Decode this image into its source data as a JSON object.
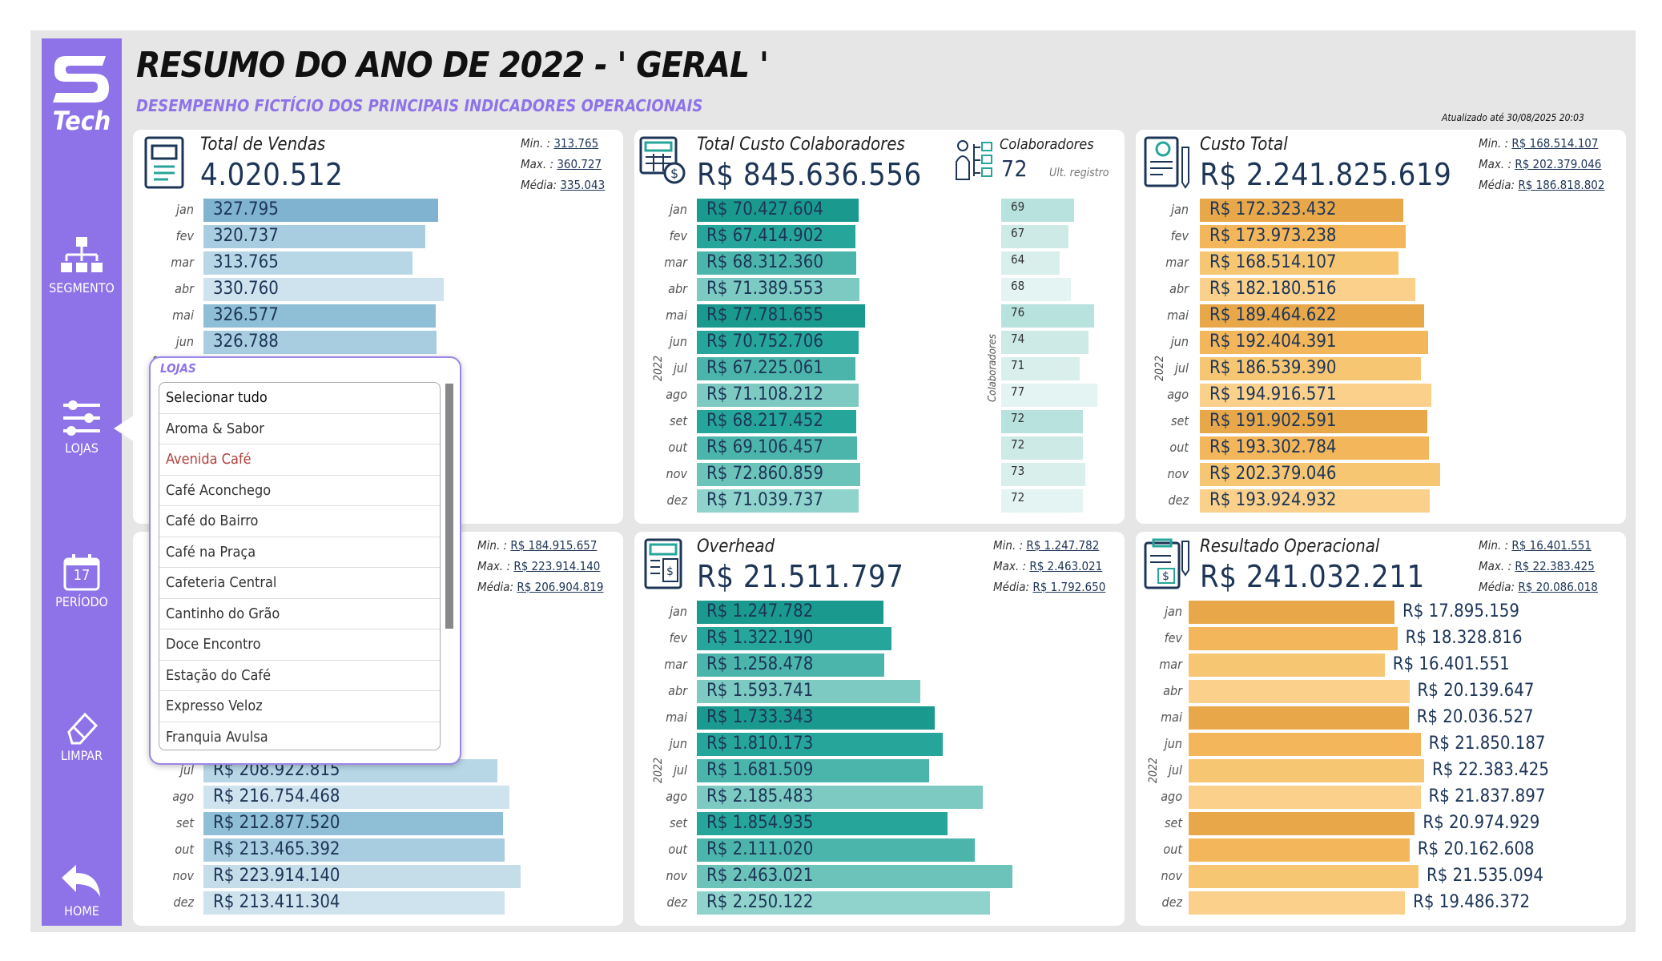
{
  "header": {
    "title": "RESUMO DO ANO DE 2022 - ' GERAL '",
    "subtitle": "DESEMPENHO FICTÍCIO DOS PRINCIPAIS INDICADORES OPERACIONAIS",
    "updated": "Atualizado até 30/08/2025 20:03"
  },
  "sidebar": {
    "logo": "Tech",
    "segmento": "SEGMENTO",
    "lojas": "LOJAS",
    "periodo": "PERÍODO",
    "periodo_day": "17",
    "limpar": "LIMPAR",
    "home": "HOME"
  },
  "months": [
    "jan",
    "fev",
    "mar",
    "abr",
    "mai",
    "jun",
    "jul",
    "ago",
    "set",
    "out",
    "nov",
    "dez"
  ],
  "year": "2022",
  "stat_labels": {
    "min": "Min.",
    "max": "Max.",
    "media": "Média:"
  },
  "cards": {
    "vendas": {
      "title": "Total de Vendas",
      "value": "4.020.512",
      "min": "313.765",
      "max": "360.727",
      "media": "335.043",
      "labels": [
        "327.795",
        "320.737",
        "313.765",
        "330.760",
        "326.577",
        "326.788"
      ],
      "values": [
        327795,
        320737,
        313765,
        330760,
        326577,
        326788
      ]
    },
    "custo_colab": {
      "title": "Total Custo Colaboradores",
      "value": "R$ 845.636.556",
      "labels": [
        "R$ 70.427.604",
        "R$ 67.414.902",
        "R$ 68.312.360",
        "R$ 71.389.553",
        "R$ 77.781.655",
        "R$ 70.752.706",
        "R$ 67.225.061",
        "R$ 71.108.212",
        "R$ 68.217.452",
        "R$ 69.106.457",
        "R$ 72.860.859",
        "R$ 71.039.737"
      ],
      "values": [
        70427604,
        67414902,
        68312360,
        71389553,
        77781655,
        70752706,
        67225061,
        71108212,
        68217452,
        69106457,
        72860859,
        71039737
      ]
    },
    "colaboradores": {
      "title": "Colaboradores",
      "value": "72",
      "note": "Ult. registro",
      "axis": "Colaboradores",
      "values": [
        69,
        67,
        64,
        68,
        76,
        74,
        71,
        77,
        72,
        72,
        73,
        72
      ]
    },
    "custo_total": {
      "title": "Custo Total",
      "value": "R$ 2.241.825.619",
      "min": "R$ 168.514.107",
      "max": "R$ 202.379.046",
      "media": "R$ 186.818.802",
      "labels": [
        "R$ 172.323.432",
        "R$ 173.973.238",
        "R$ 168.514.107",
        "R$ 182.180.516",
        "R$ 189.464.622",
        "R$ 192.404.391",
        "R$ 186.539.390",
        "R$ 194.916.571",
        "R$ 191.902.591",
        "R$ 193.302.784",
        "R$ 202.379.046",
        "R$ 193.924.932"
      ],
      "values": [
        172323432,
        173973238,
        168514107,
        182180516,
        189464622,
        192404391,
        186539390,
        194916571,
        191902591,
        193302784,
        202379046,
        193924932
      ]
    },
    "faturamento": {
      "min": "R$ 184.915.657",
      "max": "R$ 223.914.140",
      "media": "R$ 206.904.819",
      "labels": [
        "R$ 208.922.815",
        "R$ 216.754.468",
        "R$ 212.877.520",
        "R$ 213.465.392",
        "R$ 223.914.140",
        "R$ 213.411.304"
      ],
      "values": [
        208922815,
        216754468,
        212877520,
        213465392,
        223914140,
        213411304
      ]
    },
    "overhead": {
      "title": "Overhead",
      "value": "R$ 21.511.797",
      "min": "R$ 1.247.782",
      "max": "R$ 2.463.021",
      "media": "R$ 1.792.650",
      "labels": [
        "R$ 1.247.782",
        "R$ 1.322.190",
        "R$ 1.258.478",
        "R$ 1.593.741",
        "R$ 1.733.343",
        "R$ 1.810.173",
        "R$ 1.681.509",
        "R$ 2.185.483",
        "R$ 1.854.935",
        "R$ 2.111.020",
        "R$ 2.463.021",
        "R$ 2.250.122"
      ],
      "values": [
        1247782,
        1322190,
        1258478,
        1593741,
        1733343,
        1810173,
        1681509,
        2185483,
        1854935,
        2111020,
        2463021,
        2250122
      ]
    },
    "resultado": {
      "title": "Resultado Operacional",
      "value": "R$ 241.032.211",
      "min": "R$ 16.401.551",
      "max": "R$ 22.383.425",
      "media": "R$ 20.086.018",
      "labels": [
        "R$ 17.895.159",
        "R$ 18.328.816",
        "R$ 16.401.551",
        "R$ 20.139.647",
        "R$ 20.036.527",
        "R$ 21.850.187",
        "R$ 22.383.425",
        "R$ 21.837.897",
        "R$ 20.974.929",
        "R$ 20.162.608",
        "R$ 21.535.094",
        "R$ 19.486.372"
      ],
      "values": [
        17895159,
        18328816,
        16401551,
        20139647,
        20036527,
        21850187,
        22383425,
        21837897,
        20974929,
        20162608,
        21535094,
        19486372
      ]
    }
  },
  "popup": {
    "title": "LOJAS",
    "items": [
      "Selecionar tudo",
      "Aroma & Sabor",
      "Avenida Café",
      "Café Aconchego",
      "Café do Bairro",
      "Café na Praça",
      "Cafeteria Central",
      "Cantinho do Grão",
      "Doce Encontro",
      "Estação do Café",
      "Expresso Veloz",
      "Franquia Avulsa"
    ]
  },
  "colors": {
    "sidebar": "#8e73e8",
    "blue": "#7fb3cf",
    "teal": "#26a69a",
    "orange": "#e8a84a",
    "text": "#1d3557"
  }
}
